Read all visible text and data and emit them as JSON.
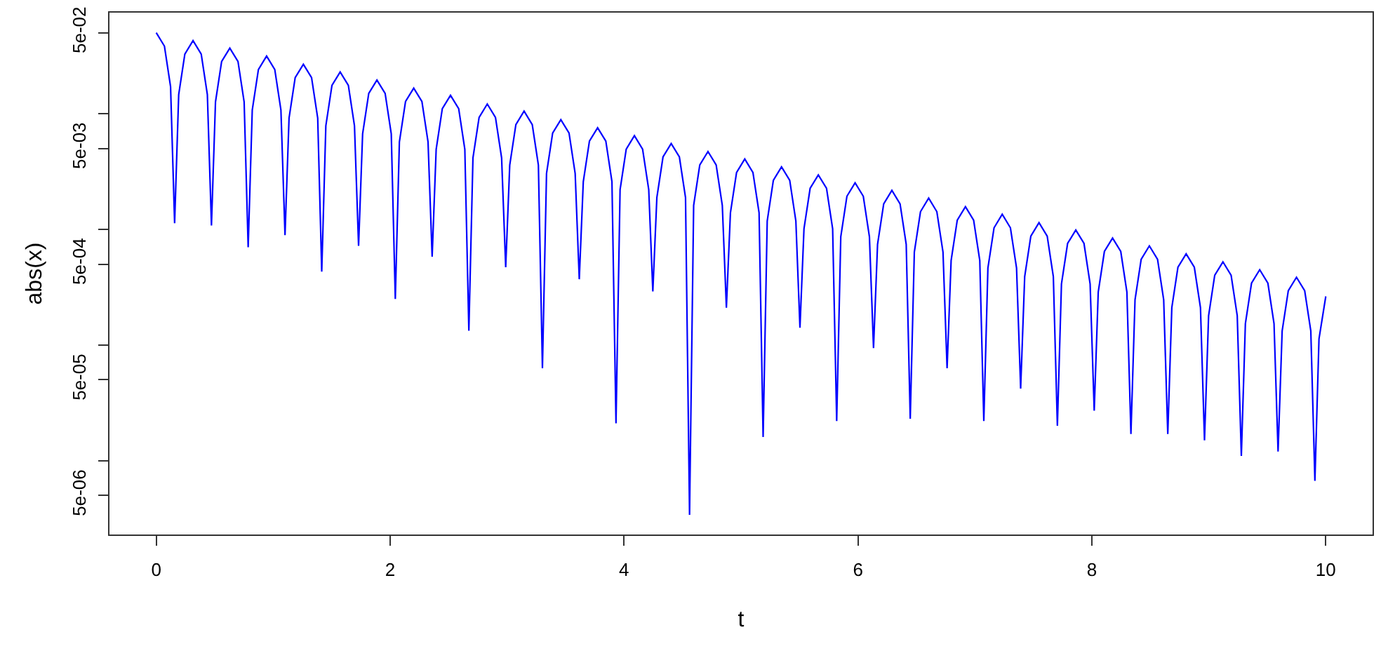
{
  "chart_data": {
    "type": "line",
    "xlabel": "t",
    "ylabel": "abs(x)",
    "log": "y",
    "grid": false,
    "marker": "none",
    "line_style": "solid",
    "xlim": [
      -0.4,
      10.4
    ],
    "xticks": [
      0,
      2,
      4,
      6,
      8,
      10
    ],
    "ylim": [
      2.3e-06,
      0.0746
    ],
    "yticks": [
      {
        "value": 0.05,
        "label": "5e-02"
      },
      {
        "value": 0.01,
        "label": null
      },
      {
        "value": 0.005,
        "label": "5e-03"
      },
      {
        "value": 0.001,
        "label": null
      },
      {
        "value": 0.0005,
        "label": "5e-04"
      },
      {
        "value": 0.0001,
        "label": null
      },
      {
        "value": 5e-05,
        "label": "5e-05"
      },
      {
        "value": 1e-05,
        "label": null
      },
      {
        "value": 5e-06,
        "label": "5e-06"
      }
    ],
    "series": [
      {
        "color": "#0000ff",
        "x": [
          0,
          0.07,
          0.1225,
          0.157,
          0.192,
          0.2445,
          0.3145,
          0.3845,
          0.437,
          0.472,
          0.5065,
          0.559,
          0.629,
          0.699,
          0.7515,
          0.786,
          0.821,
          0.8735,
          0.9435,
          1.0135,
          1.066,
          1.101,
          1.1355,
          1.188,
          1.258,
          1.328,
          1.3805,
          1.415,
          1.45,
          1.5025,
          1.5725,
          1.6425,
          1.695,
          1.73,
          1.7645,
          1.817,
          1.887,
          1.957,
          2.0095,
          2.044,
          2.079,
          2.1315,
          2.2015,
          2.2715,
          2.324,
          2.359,
          2.3935,
          2.446,
          2.516,
          2.586,
          2.6385,
          2.673,
          2.708,
          2.7605,
          2.8305,
          2.9005,
          2.953,
          2.988,
          3.0225,
          3.075,
          3.145,
          3.215,
          3.2675,
          3.302,
          3.337,
          3.3895,
          3.4595,
          3.5295,
          3.582,
          3.617,
          3.6515,
          3.704,
          3.774,
          3.844,
          3.8965,
          3.931,
          3.966,
          4.0185,
          4.0885,
          4.1585,
          4.211,
          4.246,
          4.2805,
          4.333,
          4.403,
          4.473,
          4.5255,
          4.56,
          4.595,
          4.6475,
          4.7175,
          4.7875,
          4.84,
          4.875,
          4.9095,
          4.962,
          5.032,
          5.102,
          5.1545,
          5.189,
          5.224,
          5.2765,
          5.3465,
          5.4165,
          5.469,
          5.504,
          5.5385,
          5.591,
          5.661,
          5.731,
          5.7835,
          5.818,
          5.853,
          5.9055,
          5.9755,
          6.0455,
          6.098,
          6.133,
          6.1675,
          6.22,
          6.29,
          6.36,
          6.4125,
          6.447,
          6.482,
          6.5345,
          6.6045,
          6.6745,
          6.727,
          6.762,
          6.7965,
          6.849,
          6.919,
          6.989,
          7.0415,
          7.076,
          7.111,
          7.1635,
          7.2335,
          7.3035,
          7.356,
          7.391,
          7.4255,
          7.478,
          7.548,
          7.618,
          7.6705,
          7.705,
          7.74,
          7.7925,
          7.8625,
          7.9325,
          7.985,
          8.02,
          8.0545,
          8.107,
          8.177,
          8.247,
          8.2995,
          8.334,
          8.369,
          8.4215,
          8.4915,
          8.5615,
          8.614,
          8.649,
          8.6835,
          8.736,
          8.806,
          8.876,
          8.9285,
          8.963,
          8.998,
          9.0505,
          9.1205,
          9.1905,
          9.243,
          9.278,
          9.3125,
          9.365,
          9.435,
          9.505,
          9.5575,
          9.592,
          9.627,
          9.6795,
          9.7495,
          9.8195,
          9.872,
          9.907,
          9.942,
          10
        ],
        "values": [
          0.05,
          0.0383,
          0.0171,
          0.00113,
          0.0146,
          0.0327,
          0.0427,
          0.0327,
          0.0146,
          0.00108,
          0.01259,
          0.02819,
          0.0368,
          0.02819,
          0.01259,
          0.0007,
          0.01074,
          0.02405,
          0.0314,
          0.02405,
          0.01074,
          0.00089,
          0.00913,
          0.02045,
          0.0267,
          0.02045,
          0.00913,
          0.00043,
          0.00783,
          0.01754,
          0.0229,
          0.01754,
          0.00783,
          0.00072,
          0.00667,
          0.01494,
          0.0195,
          0.01494,
          0.00667,
          0.00025,
          0.00568,
          0.01272,
          0.0166,
          0.01272,
          0.00568,
          0.00058,
          0.00492,
          0.01103,
          0.0144,
          0.01103,
          0.00492,
          0.000133,
          0.00414,
          0.00927,
          0.0121,
          0.00927,
          0.00414,
          0.00047,
          0.00359,
          0.00804,
          0.0105,
          0.00804,
          0.00359,
          6.3e-05,
          0.00303,
          0.00679,
          0.00886,
          0.00679,
          0.00303,
          0.00037,
          0.00258,
          0.00578,
          0.00755,
          0.00578,
          0.00258,
          2.1e-05,
          0.0022,
          0.00493,
          0.00644,
          0.00493,
          0.0022,
          0.00029,
          0.00188,
          0.00422,
          0.00551,
          0.00422,
          0.00188,
          3.4e-06,
          0.00161,
          0.0036,
          0.0047,
          0.0036,
          0.00161,
          0.00021,
          0.00139,
          0.0031,
          0.00405,
          0.0031,
          0.00139,
          1.6e-05,
          0.00118,
          0.00265,
          0.00346,
          0.00265,
          0.00118,
          0.000141,
          0.00101,
          0.00226,
          0.00295,
          0.00226,
          0.00101,
          2.2e-05,
          0.00086,
          0.00193,
          0.00252,
          0.00193,
          0.00086,
          9.4e-05,
          0.000742,
          0.00166,
          0.00217,
          0.00166,
          0.000742,
          2.3e-05,
          0.000636,
          0.00142,
          0.00186,
          0.00142,
          0.000636,
          6.3e-05,
          0.000537,
          0.0012,
          0.00157,
          0.0012,
          0.000537,
          2.2e-05,
          0.000462,
          0.00103,
          0.00135,
          0.00103,
          0.000462,
          4.2e-05,
          0.00039,
          0.000873,
          0.00114,
          0.000873,
          0.00039,
          2e-05,
          0.000337,
          0.000755,
          0.000986,
          0.000755,
          0.000337,
          2.7e-05,
          0.000287,
          0.000643,
          0.00084,
          0.000643,
          0.000287,
          1.7e-05,
          0.000246,
          0.000551,
          0.000719,
          0.000551,
          0.000246,
          1.7e-05,
          0.00021,
          0.00047,
          0.000613,
          0.00047,
          0.00021,
          1.5e-05,
          0.000179,
          0.000401,
          0.000523,
          0.000401,
          0.000179,
          1.1e-05,
          0.000153,
          0.000342,
          0.000447,
          0.000342,
          0.000153,
          1.2e-05,
          0.000132,
          0.000295,
          0.000385,
          0.000295,
          0.000132,
          6.7e-06,
          0.000113,
          0.000263
        ]
      }
    ]
  }
}
